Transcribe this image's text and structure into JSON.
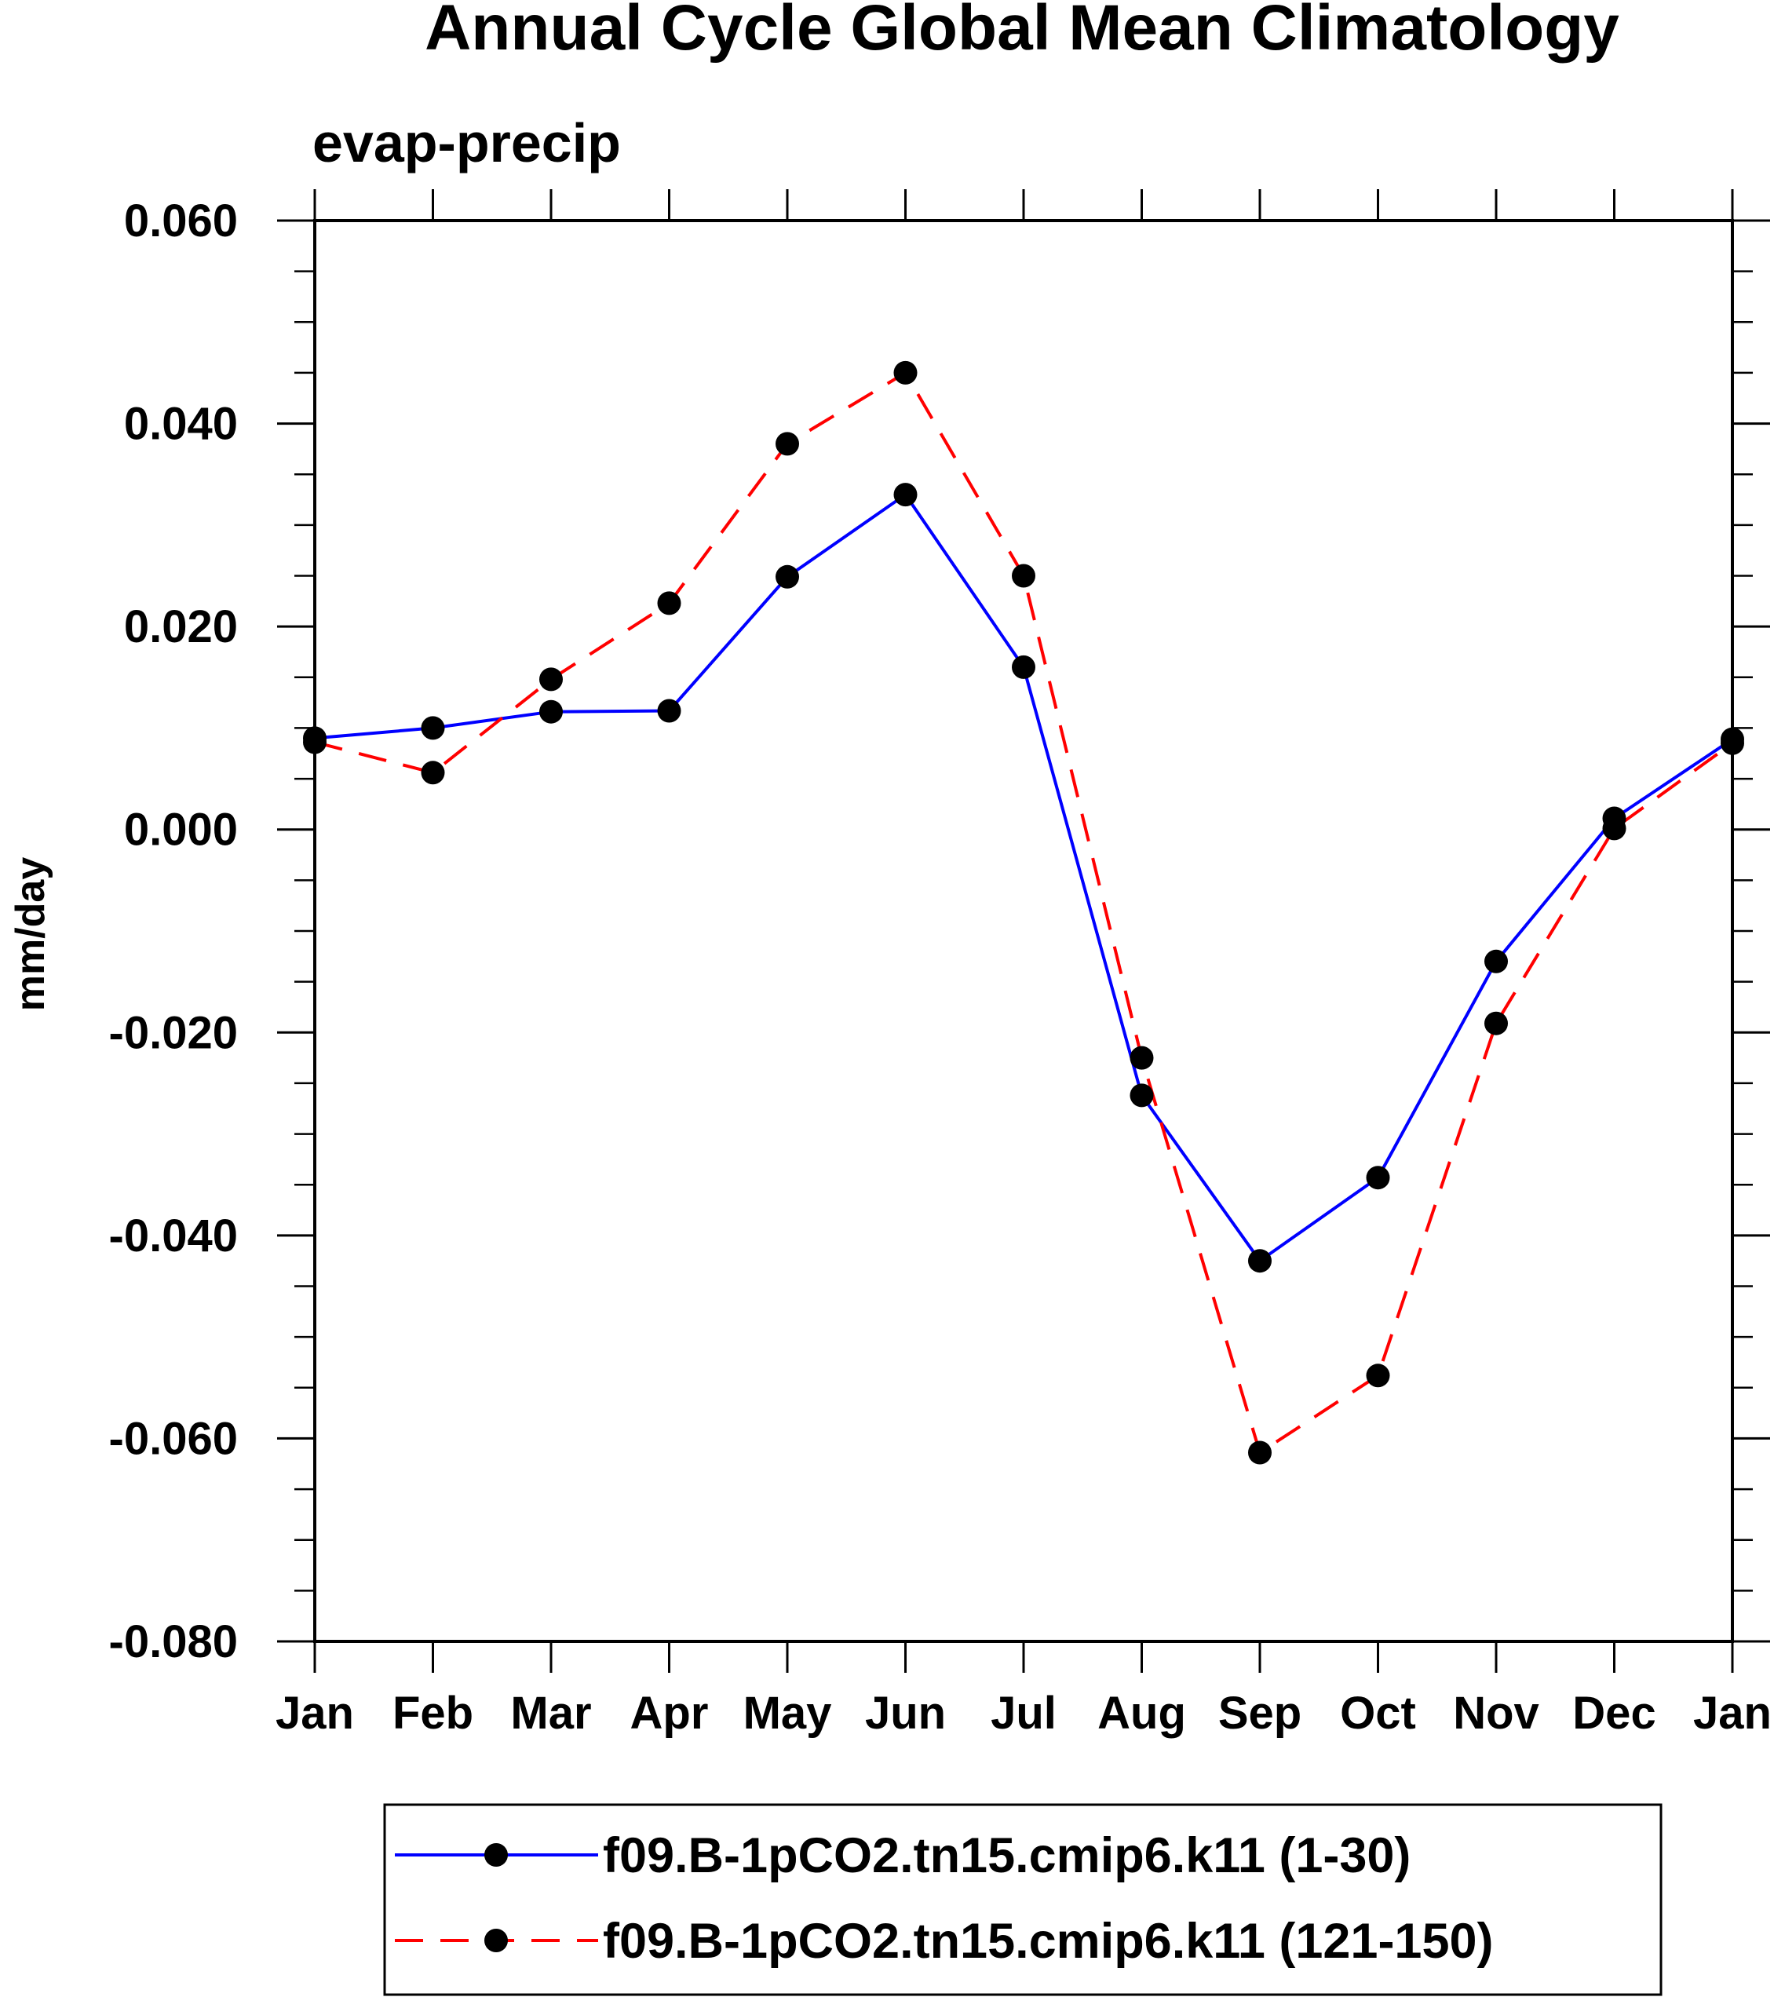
{
  "chart_data": {
    "type": "line",
    "title": "Annual Cycle Global Mean Climatology",
    "subtitle": "evap-precip",
    "xlabel": "",
    "ylabel": "mm/day",
    "categories": [
      "Jan",
      "Feb",
      "Mar",
      "Apr",
      "May",
      "Jun",
      "Jul",
      "Aug",
      "Sep",
      "Oct",
      "Nov",
      "Dec",
      "Jan"
    ],
    "ylim": [
      -0.08,
      0.06
    ],
    "yticks": [
      "0.060",
      "0.040",
      "0.020",
      "0.000",
      "-0.020",
      "-0.040",
      "-0.060",
      "-0.080"
    ],
    "ytick_values": [
      0.06,
      0.04,
      0.02,
      0.0,
      -0.02,
      -0.04,
      -0.06,
      -0.08
    ],
    "grid": false,
    "legend_position": "bottom",
    "series": [
      {
        "name": "f09.B-1pCO2.tn15.cmip6.k11 (1-30)",
        "color": "#0000ff",
        "line_style": "solid",
        "marker": "filled-circle",
        "values": [
          0.009,
          0.01,
          0.0116,
          0.0117,
          0.0249,
          0.033,
          0.016,
          -0.0262,
          -0.0425,
          -0.0343,
          -0.013,
          0.0011,
          0.0089
        ]
      },
      {
        "name": "f09.B-1pCO2.tn15.cmip6.k11 (121-150)",
        "color": "#ff0000",
        "line_style": "dashed",
        "marker": "filled-circle",
        "values": [
          0.0086,
          0.0056,
          0.0148,
          0.0223,
          0.038,
          0.045,
          0.025,
          -0.0225,
          -0.0614,
          -0.0538,
          -0.0191,
          0.0001,
          0.0085
        ]
      }
    ]
  }
}
